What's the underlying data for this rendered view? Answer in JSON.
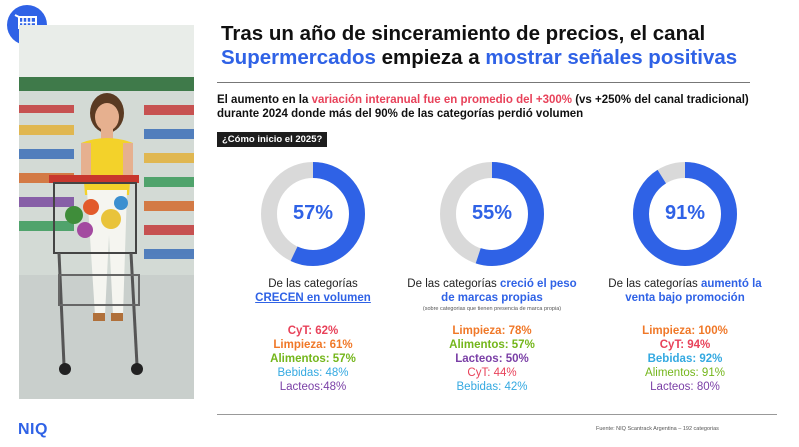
{
  "header": {
    "title_line1": "Tras un año de sinceramiento de precios, el canal",
    "title_line2_a": "Supermercados",
    "title_line2_b": " empieza a ",
    "title_line2_c": "mostrar señales positivas"
  },
  "intro": {
    "part1": "El aumento en la ",
    "highlight": "variación interanual fue en promedio del +300%",
    "part2": " (vs +250% del canal tradicional) durante 2024 donde más del 90% de las categorías perdió volumen"
  },
  "tag": "¿Cómo inicio el 2025?",
  "colors": {
    "accent_blue": "#2f62e6",
    "ring_grey": "#d9d9d9",
    "cyt": "#e8425a",
    "limpieza": "#f07828",
    "alimentos": "#74b61b",
    "lacteos": "#7a3fa6",
    "bebidas": "#34a9e1"
  },
  "stats": [
    {
      "pct_label": "57%",
      "value": 57,
      "desc_a": "De las categorías",
      "desc_b": "CRECEN en volumen",
      "note": "",
      "cats": [
        {
          "text": "CyT: 62%",
          "color": "#e8425a",
          "bold": true
        },
        {
          "text": "Limpieza: 61%",
          "color": "#f07828",
          "bold": true
        },
        {
          "text": "Alimentos: 57%",
          "color": "#74b61b",
          "bold": true
        },
        {
          "text": "Bebidas: 48%",
          "color": "#34a9e1",
          "bold": false
        },
        {
          "text": "Lacteos:48%",
          "color": "#7a3fa6",
          "bold": false
        }
      ]
    },
    {
      "pct_label": "55%",
      "value": 55,
      "desc_a": "De las categorías ",
      "desc_b": "creció el peso de marcas propias",
      "note": "(sobre categorias que tienen presencia de marca propia)",
      "cats": [
        {
          "text": "Limpieza: 78%",
          "color": "#f07828",
          "bold": true
        },
        {
          "text": "Alimentos: 57%",
          "color": "#74b61b",
          "bold": true
        },
        {
          "text": "Lacteos: 50%",
          "color": "#7a3fa6",
          "bold": true
        },
        {
          "text": "CyT: 44%",
          "color": "#e8425a",
          "bold": false
        },
        {
          "text": "Bebidas: 42%",
          "color": "#34a9e1",
          "bold": false
        }
      ]
    },
    {
      "pct_label": "91%",
      "value": 91,
      "desc_a": "De las categorías ",
      "desc_b": "aumentó la venta bajo promoción",
      "note": "",
      "cats": [
        {
          "text": "Limpieza: 100%",
          "color": "#f07828",
          "bold": true
        },
        {
          "text": "CyT: 94%",
          "color": "#e8425a",
          "bold": true
        },
        {
          "text": "Bebidas: 92%",
          "color": "#34a9e1",
          "bold": true
        },
        {
          "text": "Alimentos: 91%",
          "color": "#74b61b",
          "bold": false
        },
        {
          "text": "Lacteos: 80%",
          "color": "#7a3fa6",
          "bold": false
        }
      ]
    }
  ],
  "footer": {
    "logo": "NIQ",
    "source": "Fuente: NIQ Scantrack Argentina – 192 categorias"
  }
}
